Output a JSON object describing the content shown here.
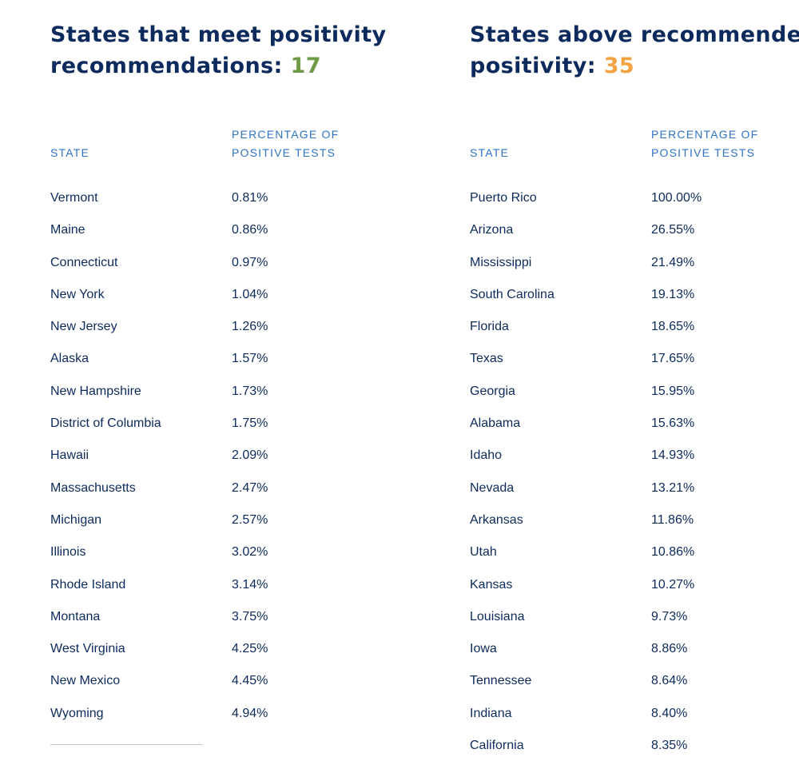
{
  "meets": {
    "heading_line1": "States that meet positivity",
    "heading_line2": "recommendations:",
    "count": "17",
    "count_color": "#6e9a46",
    "col_state": "STATE",
    "col_pct_line1": "PERCENTAGE OF",
    "col_pct_line2": "POSITIVE TESTS",
    "rows": [
      {
        "state": "Vermont",
        "pct": "0.81%"
      },
      {
        "state": "Maine",
        "pct": "0.86%"
      },
      {
        "state": "Connecticut",
        "pct": "0.97%"
      },
      {
        "state": "New York",
        "pct": "1.04%"
      },
      {
        "state": "New Jersey",
        "pct": "1.26%"
      },
      {
        "state": "Alaska",
        "pct": "1.57%"
      },
      {
        "state": "New Hampshire",
        "pct": "1.73%"
      },
      {
        "state": "District of Columbia",
        "pct": "1.75%"
      },
      {
        "state": "Hawaii",
        "pct": "2.09%"
      },
      {
        "state": "Massachusetts",
        "pct": "2.47%"
      },
      {
        "state": "Michigan",
        "pct": "2.57%"
      },
      {
        "state": "Illinois",
        "pct": "3.02%"
      },
      {
        "state": "Rhode Island",
        "pct": "3.14%"
      },
      {
        "state": "Montana",
        "pct": "3.75%"
      },
      {
        "state": "West Virginia",
        "pct": "4.25%"
      },
      {
        "state": "New Mexico",
        "pct": "4.45%"
      },
      {
        "state": "Wyoming",
        "pct": "4.94%"
      }
    ]
  },
  "above": {
    "heading_line1": "States above recommended",
    "heading_line2": "positivity:",
    "count": "35",
    "count_color": "#f4a340",
    "col_state": "STATE",
    "col_pct_line1": "PERCENTAGE OF",
    "col_pct_line2": "POSITIVE TESTS",
    "rows": [
      {
        "state": "Puerto Rico",
        "pct": "100.00%"
      },
      {
        "state": "Arizona",
        "pct": "26.55%"
      },
      {
        "state": "Mississippi",
        "pct": "21.49%"
      },
      {
        "state": "South Carolina",
        "pct": "19.13%"
      },
      {
        "state": "Florida",
        "pct": "18.65%"
      },
      {
        "state": "Texas",
        "pct": "17.65%"
      },
      {
        "state": "Georgia",
        "pct": "15.95%"
      },
      {
        "state": "Alabama",
        "pct": "15.63%"
      },
      {
        "state": "Idaho",
        "pct": "14.93%"
      },
      {
        "state": "Nevada",
        "pct": "13.21%"
      },
      {
        "state": "Arkansas",
        "pct": "11.86%"
      },
      {
        "state": "Utah",
        "pct": "10.86%"
      },
      {
        "state": "Kansas",
        "pct": "10.27%"
      },
      {
        "state": "Louisiana",
        "pct": "9.73%"
      },
      {
        "state": "Iowa",
        "pct": "8.86%"
      },
      {
        "state": "Tennessee",
        "pct": "8.64%"
      },
      {
        "state": "Indiana",
        "pct": "8.40%"
      },
      {
        "state": "California",
        "pct": "8.35%"
      }
    ]
  }
}
